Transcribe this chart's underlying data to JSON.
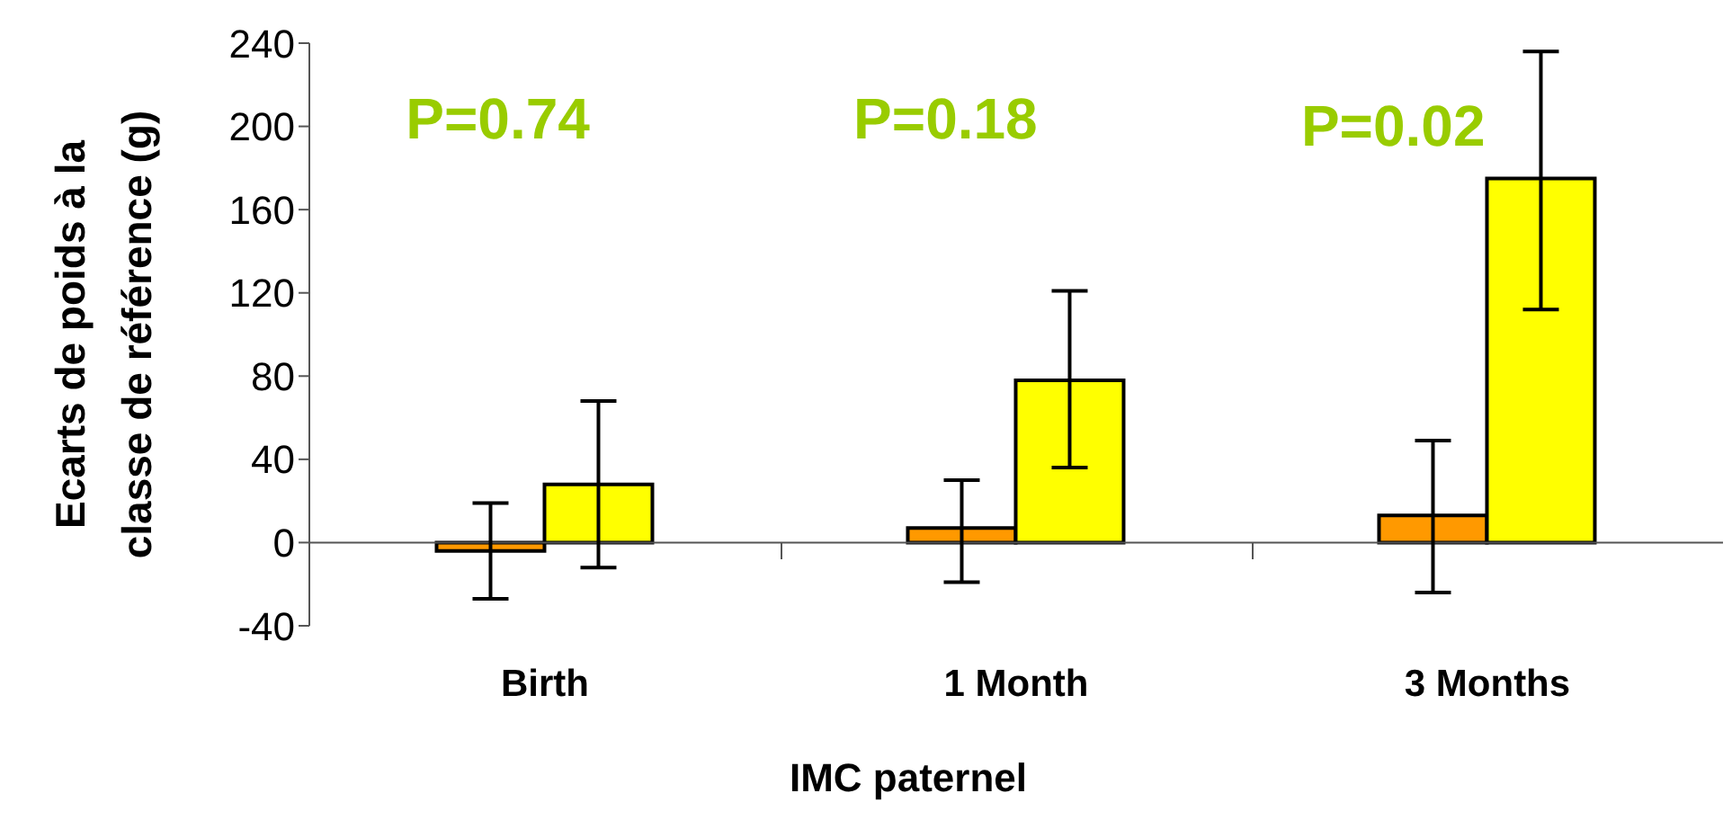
{
  "chart_data": {
    "type": "bar",
    "xlabel": "IMC paternel",
    "ylabel": "Ecarts de poids à la\nclasse de référence (g)",
    "categories": [
      "Birth",
      "1 Month",
      "3 Months"
    ],
    "series": [
      {
        "color": "#ff9900",
        "values": [
          -4,
          7,
          13
        ],
        "errors": [
          [
            -27,
            19
          ],
          [
            -19,
            30
          ],
          [
            -24,
            49
          ]
        ]
      },
      {
        "color": "#ffff00",
        "values": [
          28,
          78,
          175
        ],
        "errors": [
          [
            -12,
            68
          ],
          [
            36,
            121
          ],
          [
            112,
            236
          ]
        ]
      }
    ],
    "ylim": [
      -40,
      240
    ],
    "yticks": [
      -40,
      0,
      40,
      80,
      120,
      160,
      200,
      240
    ],
    "annotations": [
      "P=0.74",
      "P=0.18",
      "P=0.02"
    ]
  }
}
